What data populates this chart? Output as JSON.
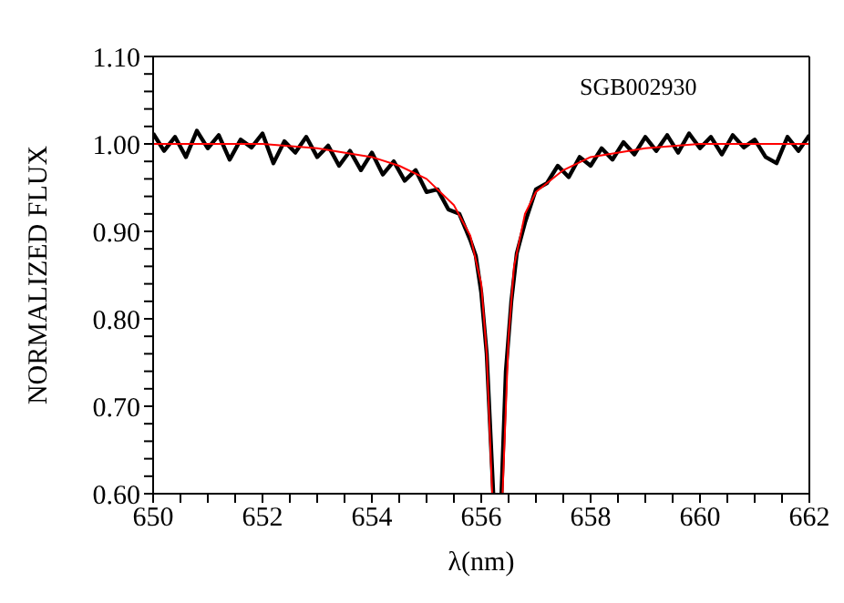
{
  "chart_data": {
    "type": "line",
    "xlabel": "λ(nm)",
    "ylabel": "NORMALIZED FLUX",
    "annotations": [
      "SGB002930"
    ],
    "marker": "none",
    "line_style": "solid",
    "grid": false,
    "xlim": [
      650,
      662
    ],
    "ylim": [
      0.6,
      1.1
    ],
    "xticks": [
      650,
      {
        "value": 650.5,
        "label": null
      },
      {
        "value": 651,
        "label": null
      },
      {
        "value": 651.5,
        "label": null
      },
      652,
      {
        "value": 652.5,
        "label": null
      },
      {
        "value": 653,
        "label": null
      },
      {
        "value": 653.5,
        "label": null
      },
      654,
      {
        "value": 654.5,
        "label": null
      },
      {
        "value": 655,
        "label": null
      },
      {
        "value": 655.5,
        "label": null
      },
      656,
      {
        "value": 656.5,
        "label": null
      },
      {
        "value": 657,
        "label": null
      },
      {
        "value": 657.5,
        "label": null
      },
      658,
      {
        "value": 658.5,
        "label": null
      },
      {
        "value": 659,
        "label": null
      },
      {
        "value": 659.5,
        "label": null
      },
      660,
      {
        "value": 660.5,
        "label": null
      },
      {
        "value": 661,
        "label": null
      },
      {
        "value": 661.5,
        "label": null
      },
      662
    ],
    "yticks": [
      {
        "value": 0.6,
        "label": "0.60"
      },
      {
        "value": 0.62,
        "label": null
      },
      {
        "value": 0.64,
        "label": null
      },
      {
        "value": 0.66,
        "label": null
      },
      {
        "value": 0.68,
        "label": null
      },
      {
        "value": 0.7,
        "label": "0.70"
      },
      {
        "value": 0.72,
        "label": null
      },
      {
        "value": 0.74,
        "label": null
      },
      {
        "value": 0.76,
        "label": null
      },
      {
        "value": 0.78,
        "label": null
      },
      {
        "value": 0.8,
        "label": "0.80"
      },
      {
        "value": 0.82,
        "label": null
      },
      {
        "value": 0.84,
        "label": null
      },
      {
        "value": 0.86,
        "label": null
      },
      {
        "value": 0.88,
        "label": null
      },
      {
        "value": 0.9,
        "label": "0.90"
      },
      {
        "value": 0.92,
        "label": null
      },
      {
        "value": 0.94,
        "label": null
      },
      {
        "value": 0.96,
        "label": null
      },
      {
        "value": 0.98,
        "label": null
      },
      {
        "value": 1.0,
        "label": "1.00"
      },
      {
        "value": 1.02,
        "label": null
      },
      {
        "value": 1.04,
        "label": null
      },
      {
        "value": 1.06,
        "label": null
      },
      {
        "value": 1.08,
        "label": null
      },
      {
        "value": 1.1,
        "label": "1.10"
      }
    ],
    "series": [
      {
        "color": "#000000",
        "x": [
          650.0,
          650.2,
          650.4,
          650.6,
          650.8,
          651.0,
          651.2,
          651.4,
          651.6,
          651.8,
          652.0,
          652.2,
          652.4,
          652.6,
          652.8,
          653.0,
          653.2,
          653.4,
          653.6,
          653.8,
          654.0,
          654.2,
          654.4,
          654.6,
          654.8,
          655.0,
          655.2,
          655.4,
          655.6,
          655.8,
          655.9,
          656.0,
          656.1,
          656.22,
          656.3,
          656.37,
          656.45,
          656.55,
          656.65,
          656.8,
          657.0,
          657.2,
          657.4,
          657.6,
          657.8,
          658.0,
          658.2,
          658.4,
          658.6,
          658.8,
          659.0,
          659.2,
          659.4,
          659.6,
          659.8,
          660.0,
          660.2,
          660.4,
          660.6,
          660.8,
          661.0,
          661.2,
          661.4,
          661.6,
          661.8,
          662.0
        ],
        "values": [
          1.012,
          0.992,
          1.008,
          0.985,
          1.015,
          0.995,
          1.01,
          0.982,
          1.005,
          0.996,
          1.012,
          0.978,
          1.003,
          0.99,
          1.008,
          0.985,
          0.998,
          0.975,
          0.992,
          0.97,
          0.99,
          0.965,
          0.98,
          0.958,
          0.97,
          0.945,
          0.948,
          0.925,
          0.92,
          0.89,
          0.872,
          0.83,
          0.76,
          0.6,
          null,
          0.6,
          0.74,
          0.82,
          0.875,
          0.91,
          0.948,
          0.955,
          0.975,
          0.962,
          0.985,
          0.975,
          0.995,
          0.982,
          1.002,
          0.988,
          1.008,
          0.992,
          1.01,
          0.99,
          1.012,
          0.995,
          1.008,
          0.988,
          1.01,
          0.996,
          1.005,
          0.985,
          0.978,
          1.008,
          0.992,
          1.01
        ]
      },
      {
        "color": "#ff0000",
        "x": [
          650,
          651,
          652,
          653,
          654,
          654.5,
          655,
          655.5,
          655.8,
          656,
          656.1,
          656.2,
          656.3,
          656.39,
          656.5,
          656.6,
          656.8,
          657,
          657.5,
          658,
          659,
          660,
          661,
          662
        ],
        "values": [
          1.0,
          1.0,
          1.0,
          0.995,
          0.985,
          0.975,
          0.96,
          0.93,
          0.895,
          0.84,
          0.76,
          0.6,
          null,
          0.6,
          0.78,
          0.86,
          0.92,
          0.945,
          0.97,
          0.985,
          0.995,
          1.0,
          1.0,
          1.0
        ]
      }
    ]
  }
}
